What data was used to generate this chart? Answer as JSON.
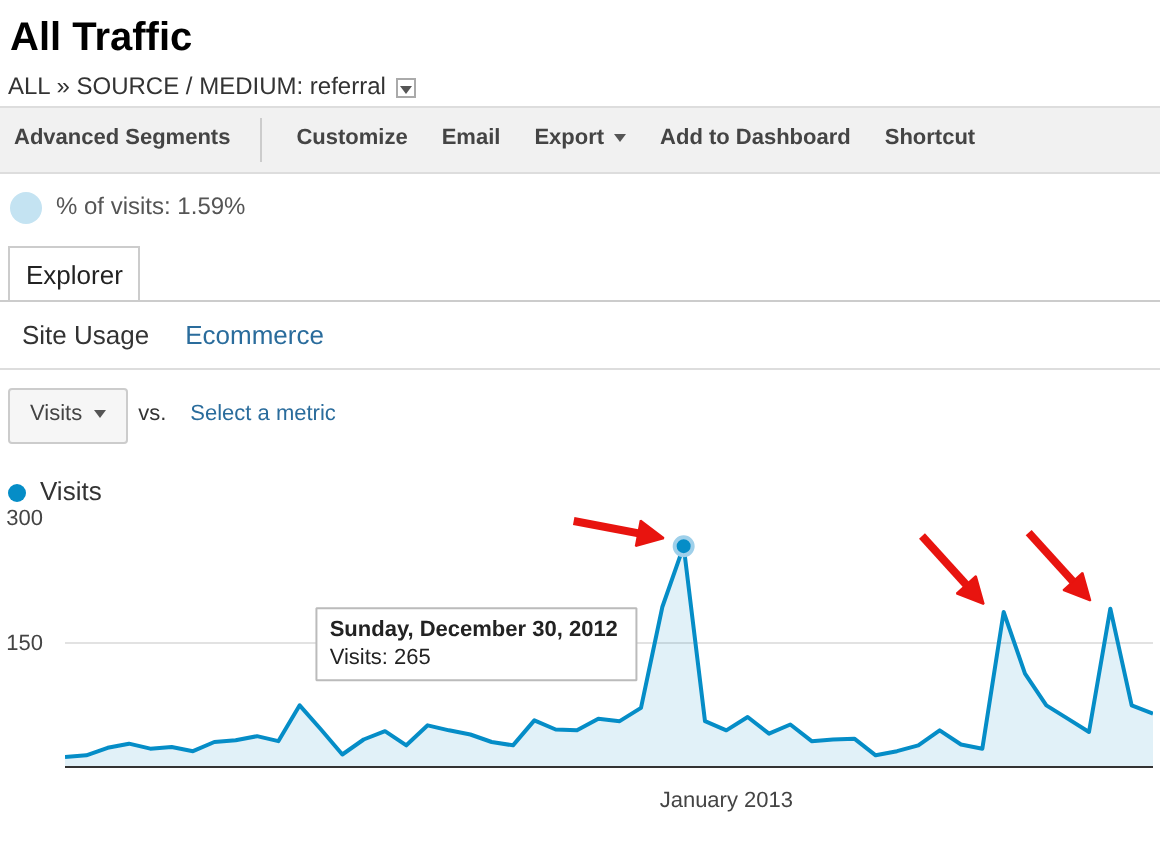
{
  "chart_data": {
    "type": "area",
    "title": "All Traffic",
    "subtitle": "ALL » SOURCE / MEDIUM: referral",
    "categories": [
      null,
      null,
      null,
      null,
      null,
      null,
      null,
      null,
      null,
      null,
      null,
      null,
      null,
      null,
      null,
      null,
      null,
      null,
      null,
      null,
      null,
      null,
      null,
      null,
      null,
      null,
      null,
      null,
      null,
      null,
      null,
      "January 2013",
      null,
      null,
      null,
      null,
      null,
      null,
      null,
      null,
      null,
      null,
      null,
      null,
      null,
      null,
      null,
      null,
      null,
      null,
      null,
      null
    ],
    "series": [
      {
        "name": "Visits",
        "color": "#058dc7",
        "values": [
          12,
          14,
          23,
          28,
          22,
          24,
          19,
          30,
          32,
          37,
          31,
          74,
          45,
          15,
          33,
          43,
          26,
          50,
          44,
          39,
          30,
          26,
          56,
          45,
          44,
          58,
          55,
          71,
          192,
          265,
          55,
          44,
          60,
          40,
          51,
          31,
          33,
          34,
          14,
          19,
          26,
          44,
          27,
          22,
          186,
          112,
          74,
          58,
          42,
          190,
          74,
          64
        ]
      }
    ],
    "ylim": [
      0,
      300
    ],
    "yticks": [
      150,
      300
    ],
    "grid": "y",
    "legend": "top left",
    "annotations": [
      "Advanced Segments",
      "Customize",
      "Email",
      "Export",
      "Add to Dashboard",
      "Shortcut",
      "% of visits: 1.59%",
      "Explorer",
      "Site Usage",
      "Ecommerce",
      "Visits",
      "vs.",
      "Select a metric",
      "Sunday, December 30, 2012",
      "Visits: 265"
    ]
  }
}
